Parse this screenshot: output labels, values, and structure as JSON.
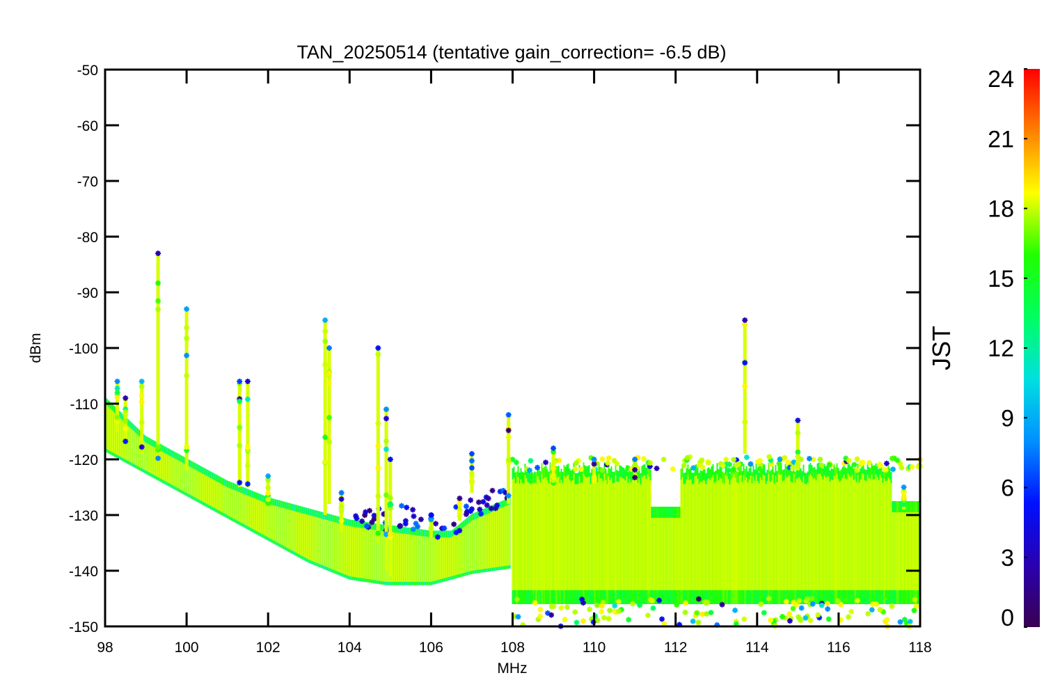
{
  "chart_data": {
    "type": "scatter",
    "title": "TAN_20250514 (tentative gain_correction= -6.5 dB)",
    "xlabel": "MHz",
    "ylabel": "dBm",
    "xlim": [
      98,
      118
    ],
    "ylim": [
      -150,
      -50
    ],
    "x_ticks": [
      "98",
      "100",
      "102",
      "104",
      "106",
      "108",
      "110",
      "112",
      "114",
      "116",
      "118"
    ],
    "y_ticks": [
      "-50",
      "-60",
      "-70",
      "-80",
      "-90",
      "-100",
      "-110",
      "-120",
      "-130",
      "-140",
      "-150"
    ],
    "grid": false,
    "marker": "asterisk",
    "colorbar": {
      "label": "JST",
      "range": [
        0,
        24
      ],
      "ticks": [
        "0",
        "3",
        "6",
        "9",
        "12",
        "15",
        "18",
        "21",
        "24"
      ],
      "colormap": "rainbow",
      "colors": [
        "#3a0050",
        "#2a00b0",
        "#0010ff",
        "#0090ff",
        "#00e0e0",
        "#00ff60",
        "#20ff00",
        "#ffff00",
        "#ff8000",
        "#ff0000"
      ]
    },
    "noise_floor": {
      "x": [
        98,
        99,
        100,
        101,
        102,
        103,
        104,
        104.9,
        105,
        106,
        106.5,
        107,
        107.95
      ],
      "upper_dbm": [
        -110,
        -117,
        -121,
        -125,
        -128,
        -130,
        -132,
        -133,
        -133,
        -134,
        -134,
        -131,
        -128
      ],
      "lower_dbm": [
        -118,
        -122,
        -126,
        -130,
        -134,
        -138,
        -141,
        -142,
        -142,
        -142,
        -141,
        -140,
        -139
      ]
    },
    "band_108_118": {
      "x_start": 108,
      "x_end": 118,
      "upper_dbm": -122,
      "dense_lower_dbm": -145,
      "scatter_lower_dbm": -150,
      "notch_x": [
        111.4,
        112.1
      ],
      "notch_upper_dbm": -129
    },
    "signals": [
      {
        "freq": 98.3,
        "top_dbm": -106,
        "bottom_dbm": -115
      },
      {
        "freq": 98.5,
        "top_dbm": -109,
        "bottom_dbm": -117
      },
      {
        "freq": 98.9,
        "top_dbm": -106,
        "bottom_dbm": -119
      },
      {
        "freq": 99.3,
        "top_dbm": -83,
        "bottom_dbm": -120
      },
      {
        "freq": 100.0,
        "top_dbm": -93,
        "bottom_dbm": -122
      },
      {
        "freq": 101.3,
        "top_dbm": -106,
        "bottom_dbm": -125
      },
      {
        "freq": 101.5,
        "top_dbm": -106,
        "bottom_dbm": -125
      },
      {
        "freq": 102.0,
        "top_dbm": -123,
        "bottom_dbm": -128
      },
      {
        "freq": 103.4,
        "top_dbm": -95,
        "bottom_dbm": -130
      },
      {
        "freq": 103.5,
        "top_dbm": -100,
        "bottom_dbm": -128
      },
      {
        "freq": 103.8,
        "top_dbm": -126,
        "bottom_dbm": -133
      },
      {
        "freq": 104.7,
        "top_dbm": -100,
        "bottom_dbm": -135
      },
      {
        "freq": 104.9,
        "top_dbm": -111,
        "bottom_dbm": -140
      },
      {
        "freq": 105.0,
        "top_dbm": -120,
        "bottom_dbm": -141
      },
      {
        "freq": 106.0,
        "top_dbm": -130,
        "bottom_dbm": -134
      },
      {
        "freq": 106.7,
        "top_dbm": -127,
        "bottom_dbm": -131
      },
      {
        "freq": 107.0,
        "top_dbm": -119,
        "bottom_dbm": -126
      },
      {
        "freq": 107.9,
        "top_dbm": -112,
        "bottom_dbm": -128
      },
      {
        "freq": 109.0,
        "top_dbm": -118,
        "bottom_dbm": -125
      },
      {
        "freq": 110.0,
        "top_dbm": -120,
        "bottom_dbm": -124
      },
      {
        "freq": 111.0,
        "top_dbm": -120,
        "bottom_dbm": -124
      },
      {
        "freq": 113.7,
        "top_dbm": -95,
        "bottom_dbm": -119
      },
      {
        "freq": 115.0,
        "top_dbm": -113,
        "bottom_dbm": -122
      },
      {
        "freq": 117.6,
        "top_dbm": -125,
        "bottom_dbm": -129
      }
    ]
  }
}
